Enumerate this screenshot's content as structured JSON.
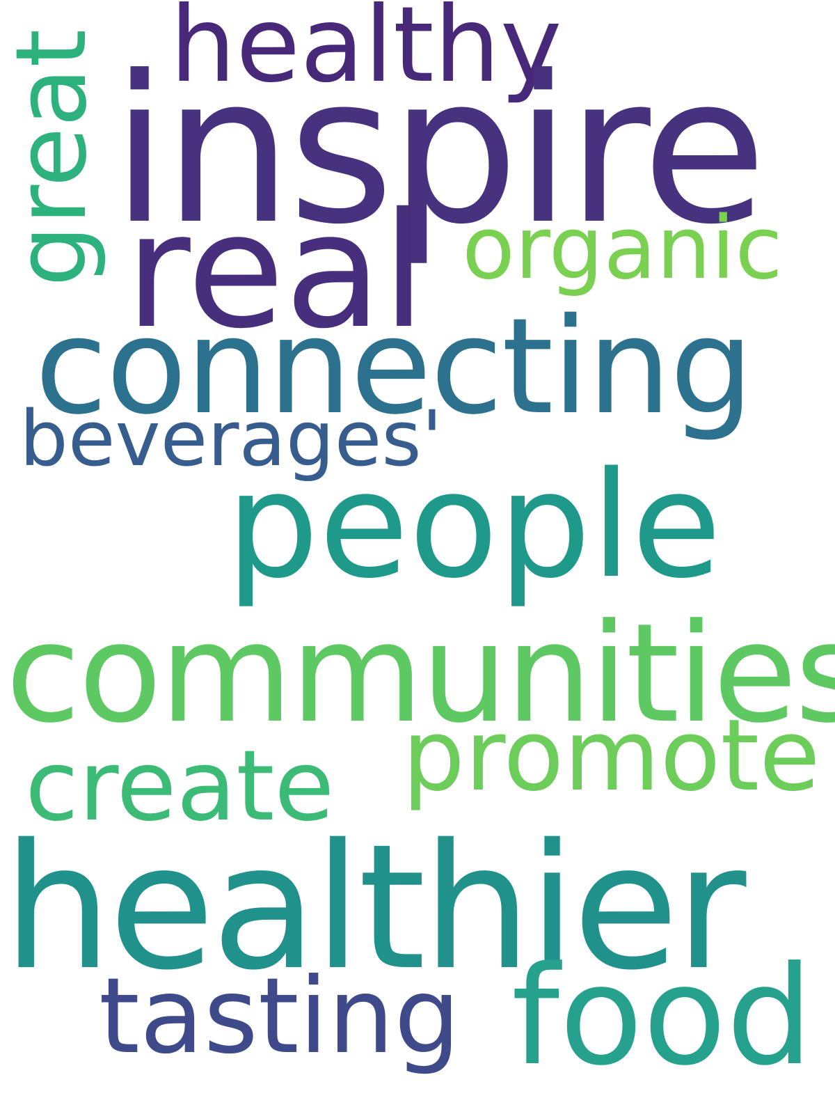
{
  "words": {
    "inspire": {
      "text": "inspire",
      "color": "#46327e"
    },
    "healthier": {
      "text": "healthier",
      "color": "#21918c"
    },
    "communities": {
      "text": "communities",
      "color": "#5ec962"
    },
    "connecting": {
      "text": "connecting",
      "color": "#2c728e"
    },
    "people": {
      "text": "people",
      "color": "#1f9a8a"
    },
    "real": {
      "text": "real",
      "color": "#472f7d"
    },
    "food": {
      "text": "food",
      "color": "#25a18e"
    },
    "healthy": {
      "text": "healthy",
      "color": "#482878"
    },
    "organic": {
      "text": "organic",
      "color": "#7ad151"
    },
    "great": {
      "text": "great",
      "color": "#2db27d"
    },
    "beverages": {
      "text": "beverages'",
      "color": "#365d8d"
    },
    "promote": {
      "text": "promote",
      "color": "#6ccd5a"
    },
    "create": {
      "text": "create",
      "color": "#3bbb75"
    },
    "tasting": {
      "text": "tasting",
      "color": "#3e4a89"
    }
  }
}
